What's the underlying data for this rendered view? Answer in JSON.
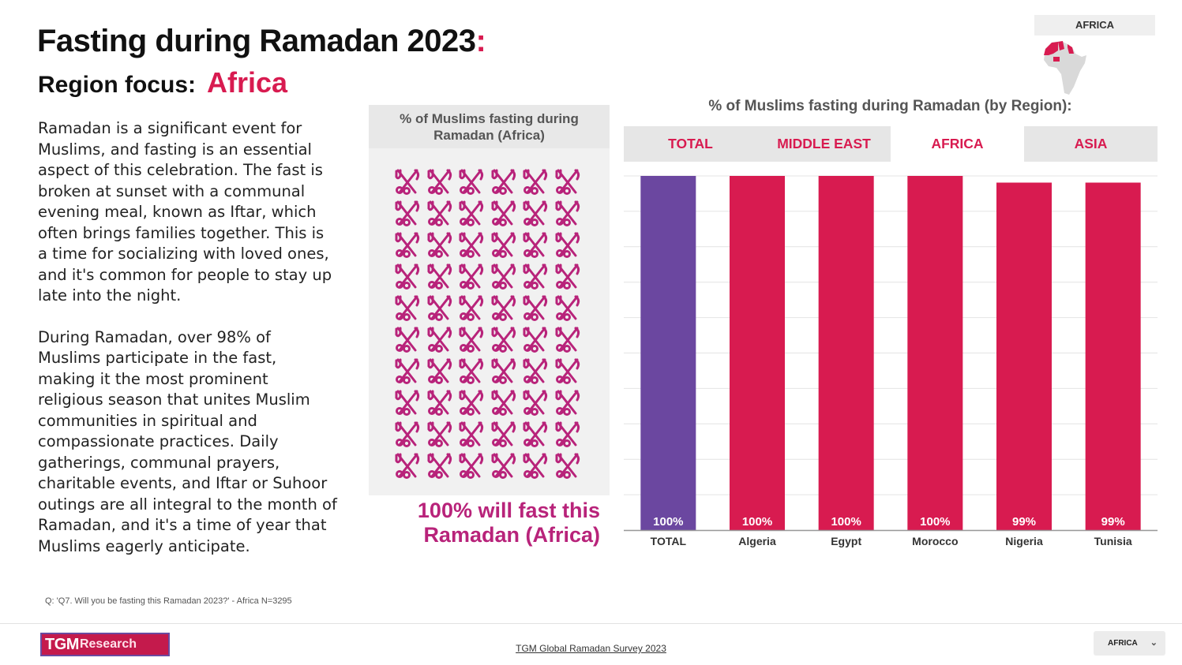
{
  "header": {
    "title": "Fasting during Ramadan 2023",
    "title_colon": ":",
    "subtitle_label": "Region focus:",
    "region": "Africa"
  },
  "body": {
    "paragraph1": "Ramadan is a significant event for Muslims, and fasting is an essential aspect of this celebration. The fast is broken at sunset with a communal evening meal, known as Iftar, which often brings families together. This is a time for socializing with loved ones, and it's common for people to stay up late into the night.",
    "paragraph2": "During Ramadan, over 98% of Muslims participate in the fast, making it the most prominent religious season that unites Muslim communities in spiritual and compassionate practices. Daily gatherings, communal prayers, charitable events, and Iftar or Suhoor outings are all integral to the month of Ramadan, and it's a time of year that Muslims eagerly anticipate."
  },
  "icon_panel": {
    "title": "% of Muslims fasting during Ramadan (Africa)",
    "icon": "fork-knife-crossed-icon",
    "icon_color": "#b8237a",
    "rows": 10,
    "cols": 6,
    "stat": "100% will fast this Ramadan (Africa)"
  },
  "footnote": "Q: 'Q7. Will you be fasting this Ramadan 2023?' - Africa N=3295",
  "map": {
    "label": "AFRICA",
    "icon": "africa-map-icon"
  },
  "tabs": [
    {
      "label": "TOTAL",
      "active": false
    },
    {
      "label": "MIDDLE EAST",
      "active": false
    },
    {
      "label": "AFRICA",
      "active": true
    },
    {
      "label": "ASIA",
      "active": false
    }
  ],
  "chart_data": {
    "type": "bar",
    "title": "% of Muslims fasting during Ramadan (by Region):",
    "categories": [
      "TOTAL",
      "Algeria",
      "Egypt",
      "Morocco",
      "Nigeria",
      "Tunisia"
    ],
    "values": [
      100,
      100,
      100,
      100,
      99,
      99
    ],
    "value_labels": [
      "100%",
      "100%",
      "100%",
      "100%",
      "99%",
      "99%"
    ],
    "bar_colors": [
      "#6b47a0",
      "#d81b50",
      "#d81b50",
      "#d81b50",
      "#d81b50",
      "#d81b50"
    ],
    "ylim": [
      0,
      100
    ],
    "grid": true,
    "legend": "none"
  },
  "footer": {
    "logo_mark": "TGM",
    "logo_text": "Research",
    "survey_link": "TGM Global Ramadan Survey 2023",
    "region_select": "AFRICA",
    "accent": "#c41a4c"
  }
}
